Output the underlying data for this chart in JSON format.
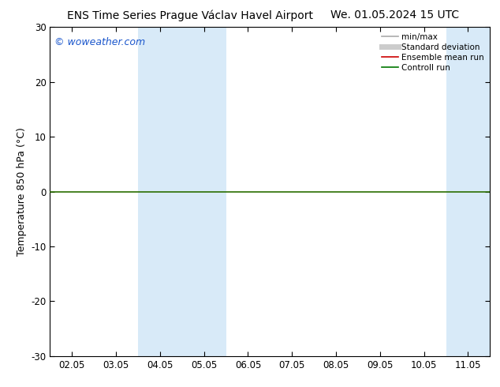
{
  "title_left": "ENS Time Series Prague Václav Havel Airport",
  "title_right": "We. 01.05.2024 15 UTC",
  "ylabel": "Temperature 850 hPa (°C)",
  "ylim": [
    -30,
    30
  ],
  "yticks": [
    -30,
    -20,
    -10,
    0,
    10,
    20,
    30
  ],
  "xtick_labels": [
    "02.05",
    "03.05",
    "04.05",
    "05.05",
    "06.05",
    "07.05",
    "08.05",
    "09.05",
    "10.05",
    "11.05"
  ],
  "xtick_positions": [
    0,
    1,
    2,
    3,
    4,
    5,
    6,
    7,
    8,
    9
  ],
  "blue_bands": [
    [
      1.5,
      2.5
    ],
    [
      2.5,
      3.5
    ],
    [
      8.5,
      9.0
    ],
    [
      9.0,
      9.5
    ]
  ],
  "watermark": "© woweather.com",
  "watermark_color": "#1a56cc",
  "legend_items": [
    {
      "label": "min/max",
      "color": "#aaaaaa",
      "lw": 1.2
    },
    {
      "label": "Standard deviation",
      "color": "#cccccc",
      "lw": 5
    },
    {
      "label": "Ensemble mean run",
      "color": "#cc0000",
      "lw": 1.2
    },
    {
      "label": "Controll run",
      "color": "#007700",
      "lw": 1.2
    }
  ],
  "bg_color": "#ffffff",
  "band_color": "#d8eaf8",
  "zero_line_color": "#2a6e00",
  "title_fontsize": 10,
  "axis_label_fontsize": 9,
  "tick_fontsize": 8.5,
  "legend_fontsize": 7.5
}
